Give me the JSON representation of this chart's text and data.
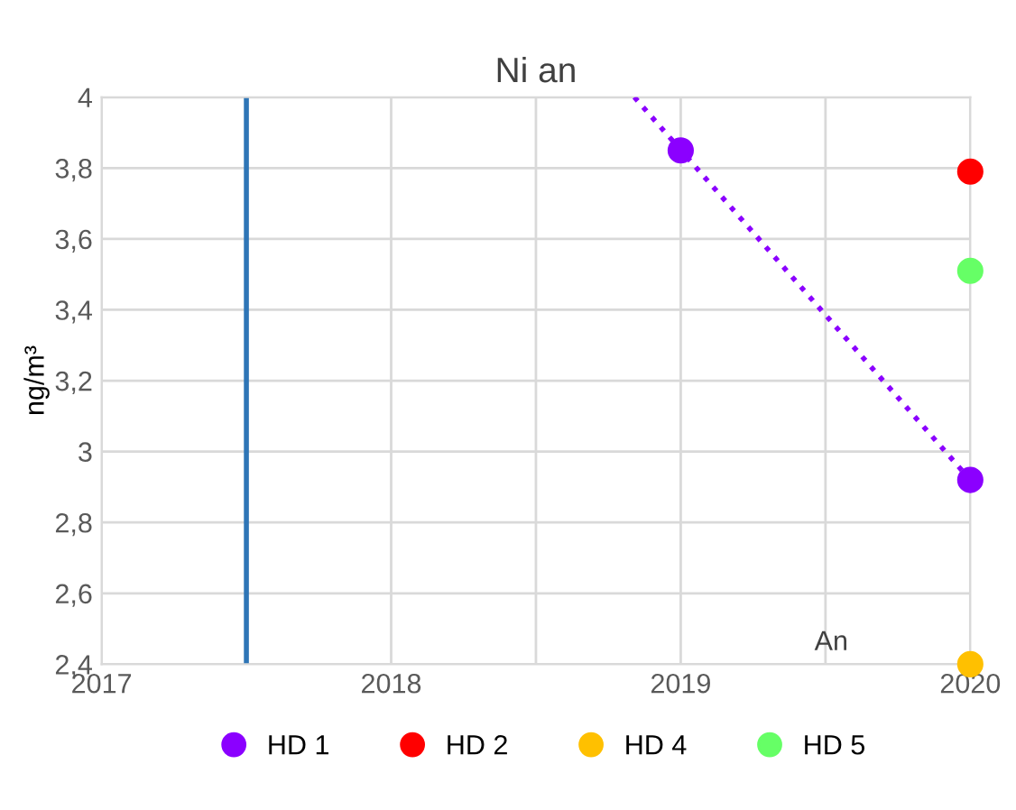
{
  "chart_data": {
    "type": "scatter",
    "title": "Ni an",
    "xlabel": "An",
    "ylabel": "ng/m³",
    "xlim": [
      2017,
      2020
    ],
    "ylim": [
      2.4,
      4
    ],
    "xticks": [
      2017,
      {
        "value": 2017.5,
        "label": null
      },
      2018,
      {
        "value": 2018.5,
        "label": null
      },
      2019,
      {
        "value": 2019.5,
        "label": null
      },
      2020
    ],
    "yticks": [
      {
        "value": 2.4,
        "label": "2,4"
      },
      {
        "value": 2.6,
        "label": "2,6"
      },
      {
        "value": 2.8,
        "label": "2,8"
      },
      {
        "value": 3,
        "label": "3"
      },
      {
        "value": 3.2,
        "label": "3,2"
      },
      {
        "value": 3.4,
        "label": "3,4"
      },
      {
        "value": 3.6,
        "label": "3,6"
      },
      {
        "value": 3.8,
        "label": "3,8"
      },
      {
        "value": 4,
        "label": "4"
      }
    ],
    "grid": true,
    "legend": "bottom",
    "marker": "circle",
    "ref_lines": [
      {
        "axis": "x",
        "value": 2017.5,
        "color": "#2e75b6"
      }
    ],
    "series": [
      {
        "name": "HD 1",
        "color": "#8b00ff",
        "x": [
          2019,
          2020
        ],
        "values": [
          3.85,
          2.92
        ]
      },
      {
        "name": "HD 2",
        "color": "#ff0000",
        "x": [
          2020
        ],
        "values": [
          3.79
        ]
      },
      {
        "name": "HD 4",
        "color": "#ffc000",
        "x": [
          2020
        ],
        "values": [
          2.4
        ]
      },
      {
        "name": "HD 5",
        "color": "#66ff66",
        "x": [
          2020
        ],
        "values": [
          3.51
        ]
      },
      {
        "type": "line",
        "marker": "none",
        "color": "#8b00ff",
        "line_style": "dotted",
        "x": [
          2018.84,
          2020
        ],
        "values": [
          4,
          2.92
        ]
      }
    ]
  }
}
